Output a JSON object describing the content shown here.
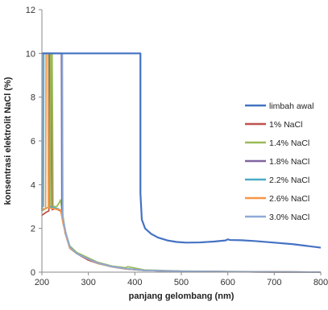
{
  "chart_data": {
    "type": "line",
    "xlabel": "panjang gelombang (nm)",
    "ylabel": "konsentrasi elektrolit NaCl (%)",
    "xlim": [
      200,
      800
    ],
    "ylim": [
      0,
      12
    ],
    "x_ticks": [
      "200",
      "300",
      "400",
      "500",
      "600",
      "700",
      "800"
    ],
    "y_ticks": [
      "0",
      "2",
      "4",
      "6",
      "8",
      "10",
      "12"
    ],
    "grid": false,
    "legend_position": "right",
    "series": [
      {
        "name": "limbah awal",
        "color": "#4472C4",
        "points": [
          [
            200,
            10
          ],
          [
            412,
            10
          ],
          [
            412,
            3.6
          ],
          [
            415,
            2.4
          ],
          [
            422,
            2.0
          ],
          [
            435,
            1.75
          ],
          [
            450,
            1.58
          ],
          [
            470,
            1.45
          ],
          [
            490,
            1.38
          ],
          [
            510,
            1.35
          ],
          [
            540,
            1.36
          ],
          [
            570,
            1.4
          ],
          [
            595,
            1.45
          ],
          [
            600,
            1.5
          ],
          [
            605,
            1.47
          ],
          [
            630,
            1.46
          ],
          [
            660,
            1.42
          ],
          [
            700,
            1.35
          ],
          [
            740,
            1.28
          ],
          [
            770,
            1.2
          ],
          [
            800,
            1.12
          ]
        ]
      },
      {
        "name": "1% NaCl",
        "color": "#C0504D",
        "points": [
          [
            200,
            2.6
          ],
          [
            210,
            2.75
          ],
          [
            215,
            2.8
          ],
          [
            216,
            10
          ],
          [
            220,
            10
          ],
          [
            222,
            2.85
          ],
          [
            228,
            2.9
          ],
          [
            235,
            2.85
          ],
          [
            240,
            2.8
          ],
          [
            245,
            2.5
          ],
          [
            250,
            1.8
          ],
          [
            260,
            1.1
          ],
          [
            275,
            0.85
          ],
          [
            300,
            0.55
          ],
          [
            320,
            0.4
          ],
          [
            350,
            0.25
          ],
          [
            380,
            0.15
          ],
          [
            420,
            0.08
          ],
          [
            500,
            0.04
          ],
          [
            600,
            0.02
          ],
          [
            800,
            0.0
          ]
        ]
      },
      {
        "name": "1.4% NaCl",
        "color": "#9BBB59",
        "points": [
          [
            200,
            2.8
          ],
          [
            212,
            2.95
          ],
          [
            218,
            3.0
          ],
          [
            219,
            10
          ],
          [
            222,
            10
          ],
          [
            224,
            3.0
          ],
          [
            232,
            3.0
          ],
          [
            238,
            3.2
          ],
          [
            240,
            3.3
          ],
          [
            243,
            2.9
          ],
          [
            250,
            1.9
          ],
          [
            260,
            1.2
          ],
          [
            275,
            0.9
          ],
          [
            300,
            0.65
          ],
          [
            320,
            0.45
          ],
          [
            350,
            0.28
          ],
          [
            380,
            0.2
          ],
          [
            385,
            0.25
          ],
          [
            420,
            0.1
          ],
          [
            500,
            0.05
          ],
          [
            600,
            0.03
          ],
          [
            800,
            0.0
          ]
        ]
      },
      {
        "name": "1.8% NaCl",
        "color": "#8064A2",
        "points": [
          [
            200,
            10
          ],
          [
            242,
            10
          ],
          [
            243,
            2.8
          ],
          [
            246,
            2.2
          ],
          [
            252,
            1.7
          ],
          [
            260,
            1.15
          ],
          [
            275,
            0.85
          ],
          [
            300,
            0.6
          ],
          [
            320,
            0.42
          ],
          [
            350,
            0.26
          ],
          [
            380,
            0.16
          ],
          [
            420,
            0.08
          ],
          [
            500,
            0.04
          ],
          [
            600,
            0.02
          ],
          [
            800,
            0.0
          ]
        ]
      },
      {
        "name": "2.2% NaCl",
        "color": "#4BACC6",
        "points": [
          [
            200,
            3.0
          ],
          [
            203,
            3.0
          ],
          [
            204,
            10
          ],
          [
            214,
            10
          ],
          [
            215,
            3.0
          ],
          [
            225,
            2.95
          ],
          [
            235,
            2.9
          ],
          [
            242,
            2.8
          ],
          [
            246,
            2.2
          ],
          [
            252,
            1.7
          ],
          [
            260,
            1.1
          ],
          [
            275,
            0.85
          ],
          [
            300,
            0.6
          ],
          [
            320,
            0.4
          ],
          [
            350,
            0.25
          ],
          [
            380,
            0.15
          ],
          [
            420,
            0.08
          ],
          [
            500,
            0.04
          ],
          [
            600,
            0.02
          ],
          [
            800,
            0.0
          ]
        ]
      },
      {
        "name": "2.6% NaCl",
        "color": "#F79646",
        "points": [
          [
            200,
            2.9
          ],
          [
            208,
            2.9
          ],
          [
            209,
            10
          ],
          [
            213,
            10
          ],
          [
            214,
            2.95
          ],
          [
            225,
            2.9
          ],
          [
            240,
            2.85
          ],
          [
            245,
            2.3
          ],
          [
            252,
            1.7
          ],
          [
            260,
            1.1
          ],
          [
            275,
            0.85
          ],
          [
            300,
            0.6
          ],
          [
            320,
            0.4
          ],
          [
            350,
            0.25
          ],
          [
            380,
            0.15
          ],
          [
            420,
            0.08
          ],
          [
            500,
            0.04
          ],
          [
            600,
            0.02
          ],
          [
            800,
            0.0
          ]
        ]
      },
      {
        "name": "3.0% NaCl",
        "color": "#8EA9D6",
        "points": [
          [
            200,
            2.8
          ],
          [
            201,
            10
          ],
          [
            244,
            10
          ],
          [
            245,
            2.5
          ],
          [
            252,
            1.75
          ],
          [
            260,
            1.15
          ],
          [
            275,
            0.85
          ],
          [
            300,
            0.6
          ],
          [
            320,
            0.42
          ],
          [
            350,
            0.26
          ],
          [
            380,
            0.16
          ],
          [
            420,
            0.08
          ],
          [
            500,
            0.04
          ],
          [
            600,
            0.02
          ],
          [
            800,
            0.0
          ]
        ]
      }
    ]
  }
}
